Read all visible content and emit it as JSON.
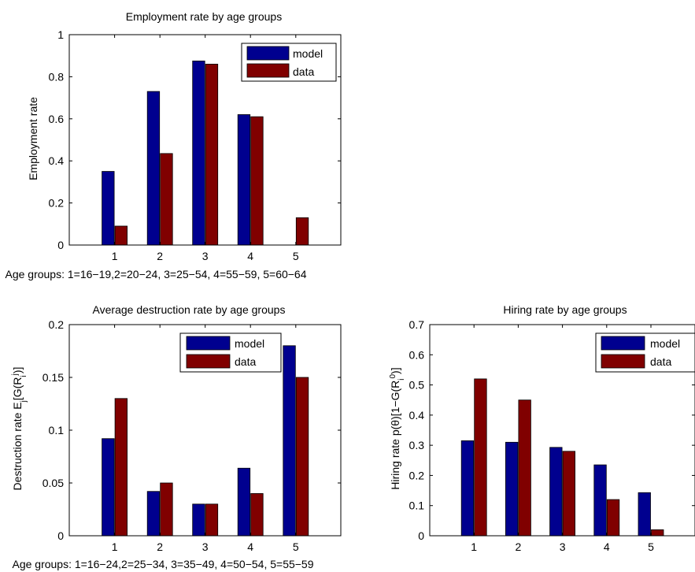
{
  "legend_labels": {
    "model": "model",
    "data": "data"
  },
  "colors": {
    "model": "#00008F",
    "data": "#800000"
  },
  "chart_data": [
    {
      "type": "bar",
      "title": "Employment rate by age groups",
      "xlabel": "Age groups: 1=16−19,2=20−24, 3=25−54, 4=55−59, 5=60−64",
      "ylabel": "Employment rate",
      "categories": [
        "1",
        "2",
        "3",
        "4",
        "5"
      ],
      "series": [
        {
          "name": "model",
          "values": [
            0.35,
            0.73,
            0.875,
            0.62,
            0.0
          ]
        },
        {
          "name": "data",
          "values": [
            0.09,
            0.435,
            0.86,
            0.61,
            0.13
          ]
        }
      ],
      "ylim": [
        0,
        1
      ],
      "yticks": [
        "0",
        "0.2",
        "0.4",
        "0.6",
        "0.8",
        "1"
      ],
      "legend": "top-right"
    },
    {
      "type": "bar",
      "title": "Average destruction rate by age groups",
      "xlabel": "Age groups: 1=16−24,2=25−34, 3=35−49, 4=50−54, 5=55−59",
      "ylabel": "Destruction rate E_j[G(R_i^j)]",
      "categories": [
        "1",
        "2",
        "3",
        "4",
        "5"
      ],
      "series": [
        {
          "name": "model",
          "values": [
            0.092,
            0.042,
            0.03,
            0.064,
            0.18
          ]
        },
        {
          "name": "data",
          "values": [
            0.13,
            0.05,
            0.03,
            0.04,
            0.15
          ]
        }
      ],
      "ylim": [
        0,
        0.2
      ],
      "yticks": [
        "0",
        "0.05",
        "0.1",
        "0.15",
        "0.2"
      ],
      "legend": "top-right"
    },
    {
      "type": "bar",
      "title": "Hiring rate by age groups",
      "xlabel": "",
      "ylabel": "Hiring rate p(θ)[1−G(R_i^0)]",
      "categories": [
        "1",
        "2",
        "3",
        "4",
        "5"
      ],
      "series": [
        {
          "name": "model",
          "values": [
            0.315,
            0.31,
            0.293,
            0.235,
            0.143
          ]
        },
        {
          "name": "data",
          "values": [
            0.52,
            0.45,
            0.28,
            0.12,
            0.02
          ]
        }
      ],
      "ylim": [
        0,
        0.7
      ],
      "yticks": [
        "0",
        "0.1",
        "0.2",
        "0.3",
        "0.4",
        "0.5",
        "0.6",
        "0.7"
      ],
      "legend": "top-right"
    }
  ]
}
